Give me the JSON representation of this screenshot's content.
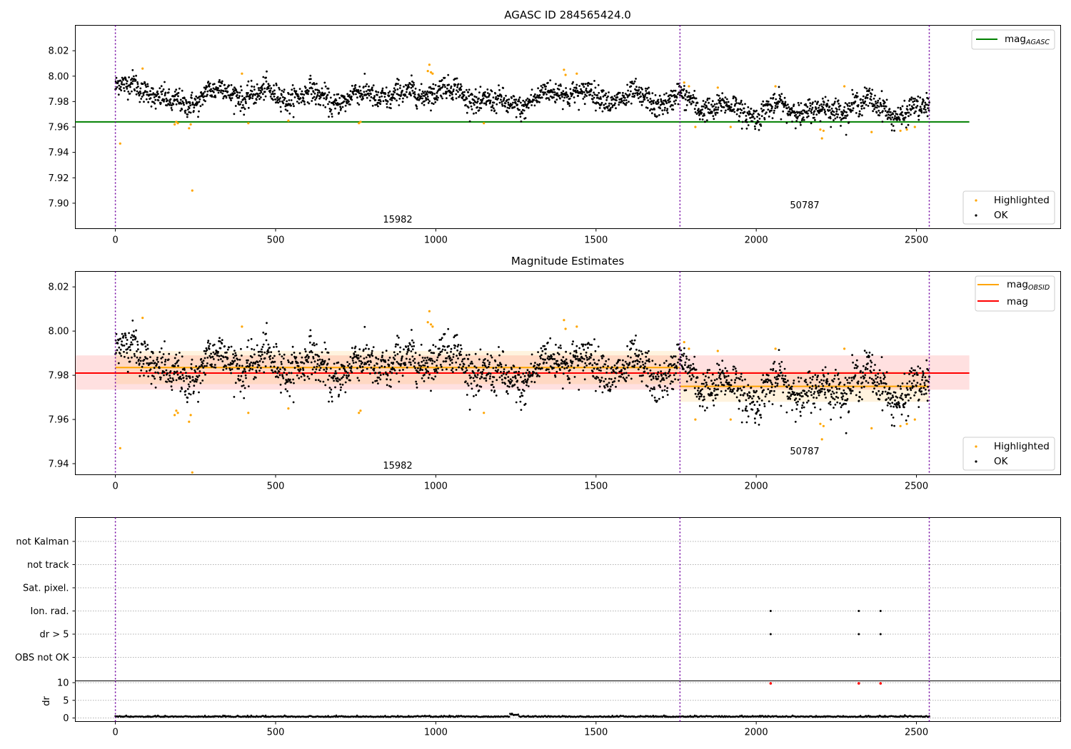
{
  "chart_data": [
    {
      "type": "scatter",
      "title": "AGASC ID 284565424.0",
      "xlim": [
        -125,
        2950
      ],
      "ylim": [
        7.88,
        8.04
      ],
      "xticks": [
        0,
        500,
        1000,
        1500,
        2000,
        2500
      ],
      "yticks": [
        7.9,
        7.92,
        7.94,
        7.96,
        7.98,
        8.0,
        8.02
      ],
      "x_range": [
        0,
        2540
      ],
      "vlines": [
        0,
        1762,
        2540
      ],
      "hlines": [
        {
          "name": "mag_AGASC",
          "y": 7.964,
          "color": "#008000",
          "x": [
            -125,
            2665
          ]
        }
      ],
      "segment_labels": [
        {
          "text": "15982",
          "x": 880,
          "y": 7.887
        },
        {
          "text": "50787",
          "x": 2150,
          "y": 7.898
        }
      ],
      "series": [
        {
          "name": "Highlighted",
          "color": "#ffa500"
        },
        {
          "name": "OK",
          "color": "#000000"
        }
      ],
      "ok_trend": {
        "x": [
          0,
          100,
          180,
          240,
          280,
          400,
          500,
          600,
          700,
          800,
          900,
          1000,
          1100,
          1200,
          1300,
          1400,
          1500,
          1600,
          1700,
          1762,
          1800,
          1900,
          2000,
          2100,
          2200,
          2300,
          2400,
          2450,
          2540
        ],
        "y": [
          7.991,
          7.991,
          7.976,
          7.98,
          7.988,
          7.986,
          7.985,
          7.985,
          7.981,
          7.986,
          7.984,
          7.99,
          7.985,
          7.977,
          7.98,
          7.99,
          7.983,
          7.983,
          7.98,
          7.983,
          7.978,
          7.975,
          7.971,
          7.976,
          7.971,
          7.978,
          7.977,
          7.968,
          7.976
        ],
        "scatter": 0.0045,
        "n_points": 2400
      },
      "highlighted": {
        "x": [
          15,
          85,
          185,
          190,
          195,
          230,
          235,
          240,
          395,
          415,
          540,
          760,
          765,
          975,
          980,
          985,
          990,
          1150,
          1400,
          1405,
          1440,
          1775,
          1790,
          1810,
          1880,
          1920,
          2060,
          2200,
          2205,
          2210,
          2275,
          2360,
          2450,
          2470,
          2495
        ],
        "y": [
          7.947,
          8.006,
          7.962,
          7.964,
          7.963,
          7.959,
          7.962,
          7.91,
          8.002,
          7.963,
          7.965,
          7.963,
          7.964,
          8.004,
          8.009,
          8.003,
          8.002,
          7.963,
          8.005,
          8.001,
          8.002,
          7.995,
          7.992,
          7.96,
          7.991,
          7.96,
          7.992,
          7.958,
          7.951,
          7.957,
          7.992,
          7.956,
          7.957,
          7.958,
          7.96
        ]
      }
    },
    {
      "type": "scatter",
      "title": "Magnitude Estimates",
      "xlim": [
        -125,
        2950
      ],
      "ylim": [
        7.935,
        8.027
      ],
      "xticks": [
        0,
        500,
        1000,
        1500,
        2000,
        2500
      ],
      "yticks": [
        7.94,
        7.96,
        7.98,
        8.0,
        8.02
      ],
      "x_range": [
        0,
        2540
      ],
      "vlines": [
        0,
        1762,
        2540
      ],
      "hlines": [
        {
          "name": "mag_OBSID",
          "y": 7.9835,
          "color": "#ffa500",
          "x": [
            0,
            1762
          ]
        },
        {
          "name": "mag_OBSID",
          "y": 7.975,
          "color": "#ffa500",
          "x": [
            1762,
            2540
          ]
        },
        {
          "name": "mag",
          "y": 7.981,
          "color": "#ff0000",
          "x": [
            -125,
            2665
          ]
        }
      ],
      "bands": [
        {
          "y": [
            7.9735,
            7.989
          ],
          "color": "#ff0000",
          "opacity": 0.12,
          "x": [
            -125,
            2665
          ]
        },
        {
          "y": [
            7.976,
            7.991
          ],
          "color": "#ffa500",
          "opacity": 0.13,
          "x": [
            0,
            1762
          ]
        },
        {
          "y": [
            7.968,
            7.982
          ],
          "color": "#ffa500",
          "opacity": 0.13,
          "x": [
            1762,
            2540
          ]
        }
      ],
      "segment_labels": [
        {
          "text": "15982",
          "x": 880,
          "y": 7.939
        },
        {
          "text": "50787",
          "x": 2150,
          "y": 7.946
        }
      ],
      "series": [
        {
          "name": "mag_OBSID",
          "color": "#ffa500"
        },
        {
          "name": "mag",
          "color": "#ff0000"
        },
        {
          "name": "Highlighted",
          "color": "#ffa500"
        },
        {
          "name": "OK",
          "color": "#000000"
        }
      ],
      "ok_trend": {
        "x": [
          0,
          100,
          180,
          240,
          280,
          400,
          500,
          600,
          700,
          800,
          900,
          1000,
          1100,
          1200,
          1300,
          1400,
          1500,
          1600,
          1700,
          1762,
          1800,
          1900,
          2000,
          2100,
          2200,
          2300,
          2400,
          2450,
          2540
        ],
        "y": [
          7.991,
          7.991,
          7.976,
          7.98,
          7.988,
          7.986,
          7.985,
          7.985,
          7.981,
          7.986,
          7.984,
          7.99,
          7.985,
          7.977,
          7.98,
          7.99,
          7.983,
          7.983,
          7.98,
          7.983,
          7.978,
          7.975,
          7.971,
          7.976,
          7.971,
          7.978,
          7.977,
          7.968,
          7.976
        ],
        "scatter": 0.0045,
        "n_points": 2400
      },
      "highlighted": {
        "x": [
          15,
          85,
          185,
          190,
          195,
          230,
          235,
          240,
          395,
          415,
          540,
          760,
          765,
          975,
          980,
          985,
          990,
          1150,
          1400,
          1405,
          1440,
          1775,
          1790,
          1810,
          1880,
          1920,
          2060,
          2200,
          2205,
          2210,
          2275,
          2360,
          2450,
          2470,
          2495
        ],
        "y": [
          7.947,
          8.006,
          7.962,
          7.964,
          7.963,
          7.959,
          7.962,
          7.936,
          8.002,
          7.963,
          7.965,
          7.963,
          7.964,
          8.004,
          8.009,
          8.003,
          8.002,
          7.963,
          8.005,
          8.001,
          8.002,
          7.995,
          7.992,
          7.96,
          7.991,
          7.96,
          7.992,
          7.958,
          7.951,
          7.957,
          7.992,
          7.956,
          7.957,
          7.958,
          7.96
        ]
      }
    },
    {
      "type": "scatter",
      "title": "",
      "xlim": [
        -125,
        2950
      ],
      "categories": [
        "not Kalman",
        "not track",
        "Sat. pixel.",
        "Ion. rad.",
        "dr > 5",
        "OBS not OK"
      ],
      "vlines": [
        0,
        1762,
        2540
      ],
      "flags": [
        {
          "category": "Ion. rad.",
          "x": [
            2045,
            2320,
            2388
          ]
        },
        {
          "category": "dr > 5",
          "x": [
            2045,
            2320,
            2388
          ]
        }
      ]
    },
    {
      "type": "scatter",
      "title": "",
      "xlim": [
        -125,
        2950
      ],
      "ylim": [
        -1,
        10.5
      ],
      "xticks": [
        0,
        500,
        1000,
        1500,
        2000,
        2500
      ],
      "yticks": [
        0,
        5,
        10
      ],
      "ylabel": "dr",
      "vlines": [
        0,
        1762,
        2540
      ],
      "x_range": [
        0,
        2540
      ],
      "typical": 0.3,
      "clipped": {
        "x": [
          2045,
          2320,
          2388
        ],
        "y": 10,
        "color": "#ff0000"
      }
    }
  ],
  "legend_top": {
    "mag_AGASC_base": "mag",
    "mag_AGASC_sub": "AGASC",
    "highlighted": "Highlighted",
    "ok": "OK"
  },
  "legend_mid": {
    "mag_OBSID_base": "mag",
    "mag_OBSID_sub": "OBSID",
    "mag": "mag",
    "highlighted": "Highlighted",
    "ok": "OK"
  },
  "segment_labels_text": {
    "a": "15982",
    "b": "50787"
  }
}
